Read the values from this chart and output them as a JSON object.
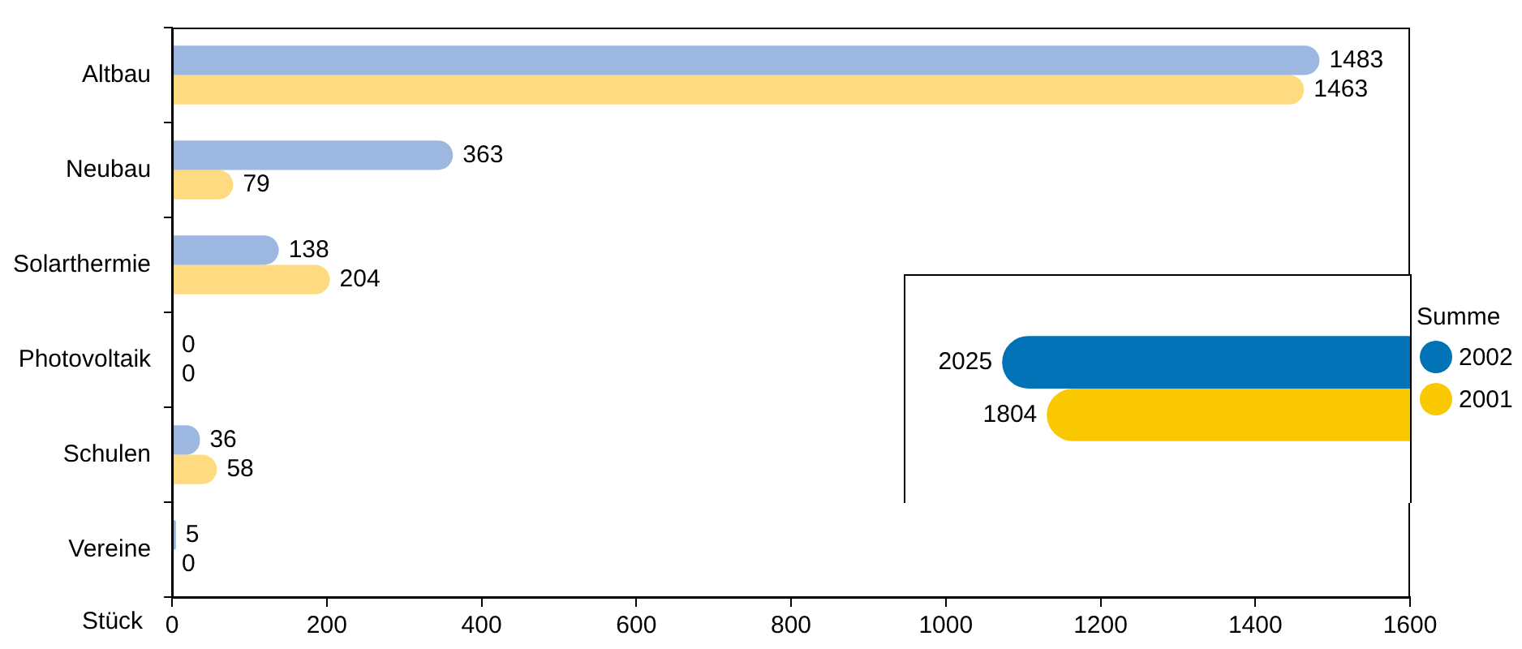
{
  "chart_data": [
    {
      "type": "bar",
      "orientation": "horizontal",
      "xlabel": "Stück",
      "categories": [
        "Altbau",
        "Neubau",
        "Solarthermie",
        "Photovoltaik",
        "Schulen",
        "Vereine"
      ],
      "series": [
        {
          "color": "#9db8e0",
          "values": [
            1483,
            363,
            138,
            0,
            36,
            5
          ]
        },
        {
          "color": "#fedb80",
          "values": [
            1463,
            79,
            204,
            0,
            58,
            0
          ]
        }
      ],
      "xlim": [
        0,
        1600
      ],
      "xticks": [
        0,
        200,
        400,
        600,
        800,
        1000,
        1200,
        1400,
        1600
      ],
      "data_labels": true
    },
    {
      "type": "bar",
      "orientation": "horizontal",
      "categories": [
        null
      ],
      "legend_title": "Summe",
      "legend": "right",
      "tick_labels": false,
      "series": [
        {
          "name": "2002",
          "color": "#0072b5",
          "values": [
            2025
          ]
        },
        {
          "name": "2001",
          "color": "#f9c800",
          "values": [
            1804
          ]
        }
      ],
      "data_labels": true
    }
  ]
}
